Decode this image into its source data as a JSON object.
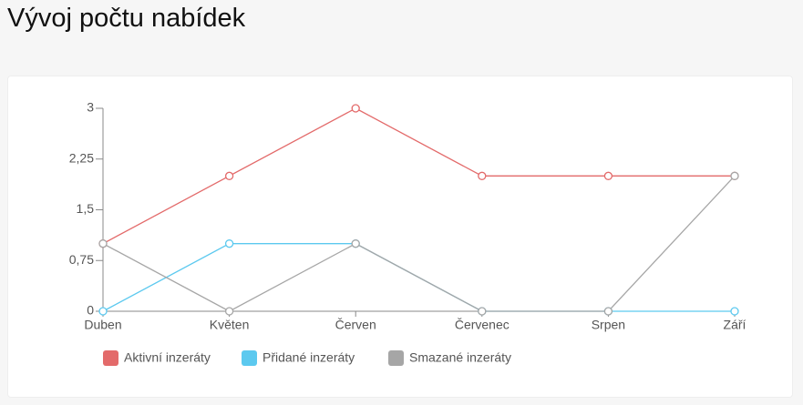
{
  "header": {
    "title": "Vývoj počtu nabídek"
  },
  "chart_data": {
    "type": "line",
    "categories": [
      "Duben",
      "Květen",
      "Červen",
      "Červenec",
      "Srpen",
      "Září"
    ],
    "series": [
      {
        "name": "Aktivní inzeráty",
        "color": "#e36a6a",
        "values": [
          1,
          2,
          3,
          2,
          2,
          2
        ]
      },
      {
        "name": "Přidané inzeráty",
        "color": "#5cc9ef",
        "values": [
          0,
          1,
          1,
          0,
          0,
          0
        ]
      },
      {
        "name": "Smazané inzeráty",
        "color": "#a6a6a6",
        "values": [
          1,
          0,
          1,
          0,
          0,
          2
        ]
      }
    ],
    "ylim": [
      0,
      3
    ],
    "yticks": [
      0,
      {
        "value": 0.75,
        "label": "0,75"
      },
      {
        "value": 1.5,
        "label": "1,5"
      },
      {
        "value": 2.25,
        "label": "2,25"
      },
      3
    ],
    "grid": false
  }
}
